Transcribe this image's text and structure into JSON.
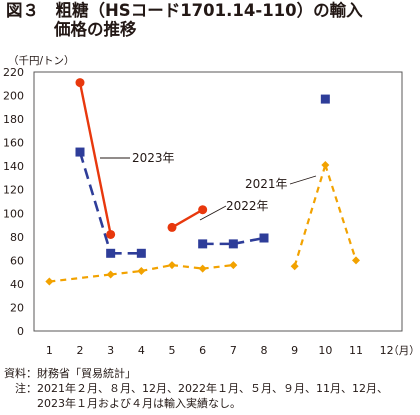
{
  "figure": {
    "title_line1": "図３　粗糖（HSコード1701.14-110）の輸入",
    "title_line2": "価格の推移"
  },
  "chart_data": {
    "type": "line",
    "unit_label": "（千円/トン）",
    "x_unit": "（月）",
    "categories": [
      "1",
      "2",
      "3",
      "4",
      "5",
      "6",
      "7",
      "8",
      "9",
      "10",
      "11",
      "12"
    ],
    "ylim": [
      0,
      220
    ],
    "yticks": [
      0,
      20,
      40,
      60,
      80,
      100,
      120,
      140,
      160,
      180,
      200,
      220
    ],
    "grid": false,
    "series": [
      {
        "name": "2021年",
        "color": "#f2a200",
        "marker": "diamond",
        "points": [
          {
            "x": 1,
            "y": 42,
            "connected": false
          },
          {
            "x": 3,
            "y": 48,
            "connected": true
          },
          {
            "x": 4,
            "y": 51,
            "connected": true
          },
          {
            "x": 5,
            "y": 56,
            "connected": true
          },
          {
            "x": 6,
            "y": 53,
            "connected": true
          },
          {
            "x": 7,
            "y": 56,
            "connected": true
          },
          {
            "x": 9,
            "y": 55,
            "connected": false
          },
          {
            "x": 10,
            "y": 141,
            "connected": true
          },
          {
            "x": 11,
            "y": 60,
            "connected": true
          }
        ]
      },
      {
        "name": "2022年",
        "color": "#2e3d99",
        "marker": "square",
        "points": [
          {
            "x": 2,
            "y": 152,
            "connected": false
          },
          {
            "x": 3,
            "y": 66,
            "connected": true
          },
          {
            "x": 4,
            "y": 66,
            "connected": true
          },
          {
            "x": 6,
            "y": 74,
            "connected": false
          },
          {
            "x": 7,
            "y": 74,
            "connected": true
          },
          {
            "x": 8,
            "y": 79,
            "connected": true
          },
          {
            "x": 10,
            "y": 197,
            "connected": false
          }
        ]
      },
      {
        "name": "2023年",
        "color": "#e8380d",
        "marker": "circle",
        "points": [
          {
            "x": 2,
            "y": 211,
            "connected": false
          },
          {
            "x": 3,
            "y": 82,
            "connected": true
          },
          {
            "x": 5,
            "y": 88,
            "connected": false
          },
          {
            "x": 6,
            "y": 103,
            "connected": true
          }
        ]
      }
    ]
  },
  "footnotes": {
    "source": "資料：財務省「貿易統計」",
    "note_line1": "　注：2021年２月、８月、12月、2022年１月、５月、９月、11月、12月、",
    "note_line2": "　　　2023年１月および４月は輸入実績なし。"
  }
}
